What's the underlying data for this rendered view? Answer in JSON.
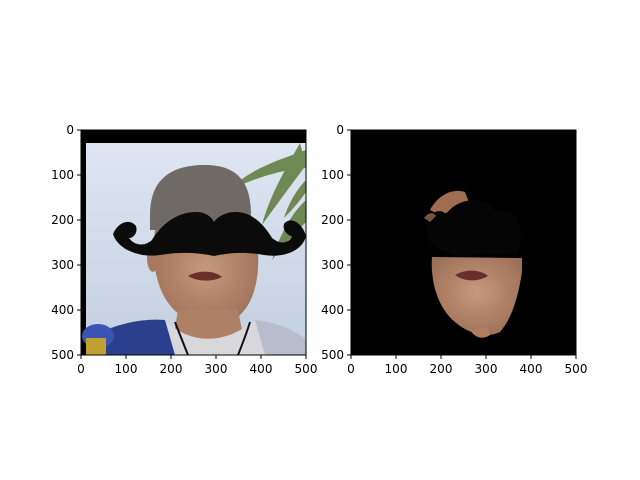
{
  "chart_data": [
    {
      "type": "image",
      "content": "photo of a man's face with a large black mustache shape drawn over the eyes",
      "xlim": [
        0,
        500
      ],
      "ylim": [
        500,
        0
      ],
      "xticks": [
        0,
        100,
        200,
        300,
        400,
        500
      ],
      "yticks": [
        0,
        100,
        200,
        300,
        400,
        500
      ],
      "title": "",
      "xlabel": "",
      "ylabel": ""
    },
    {
      "type": "image",
      "content": "segmented face region on black background with mustache shape overlaid",
      "xlim": [
        0,
        500
      ],
      "ylim": [
        500,
        0
      ],
      "xticks": [
        0,
        100,
        200,
        300,
        400,
        500
      ],
      "yticks": [
        0,
        100,
        200,
        300,
        400,
        500
      ],
      "title": "",
      "xlabel": "",
      "ylabel": ""
    }
  ],
  "colors": {
    "sky": "#c9d6e8",
    "skin": "#b88a6f",
    "hair": "#6f6a66",
    "jacket": "#2b3f8f",
    "shirt": "#d8d8dc",
    "mustache": "#0b0b0b",
    "background": "#000000"
  }
}
